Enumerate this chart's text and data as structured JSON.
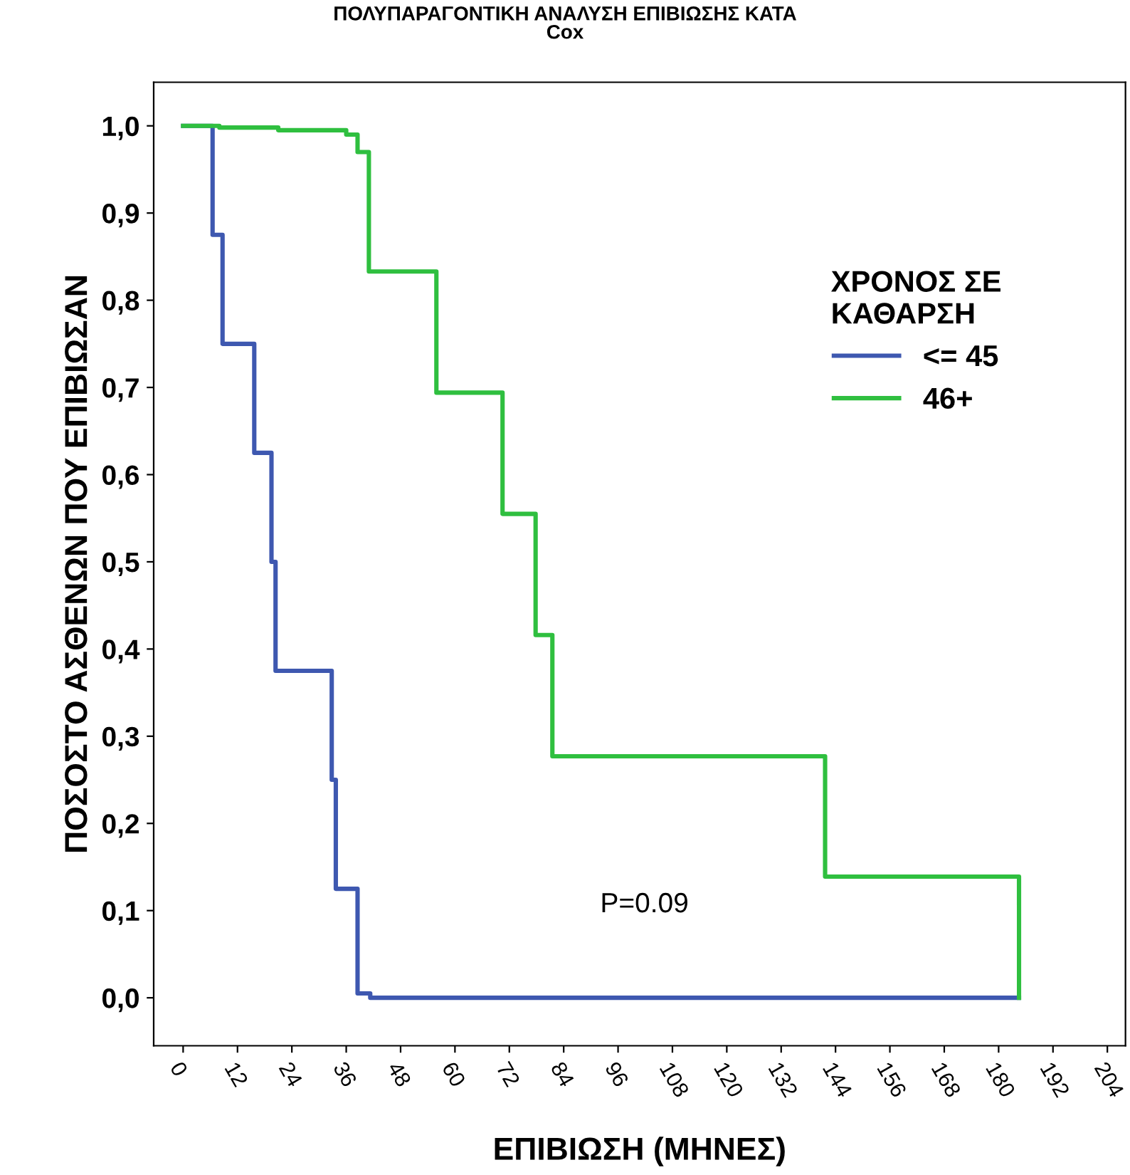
{
  "chart_data": {
    "type": "step",
    "title": "ΠΟΛΥΠΑΡΑΓΟΝΤΙΚΗ ΑΝΑΛΥΣΗ ΕΠΙΒΙΩΣΗΣ ΚΑΤΑ\nCox",
    "xlabel": "ΕΠΙΒΙΩΣΗ (ΜΗΝΕΣ)",
    "ylabel": "ΠΟΣΟΣΤΟ ΑΣΘΕΝΩΝ ΠΟΥ ΕΠΙΒΙΩΣΑΝ",
    "legend_title": "ΧΡΟΝΟΣ ΣΕ\nΚΑΘΑΡΣΗ",
    "legend": "right",
    "series": [
      {
        "name": "<= 45",
        "color": "#3e58b0",
        "x": [
          0,
          6.5,
          8.7,
          15.7,
          19.5,
          20.4,
          32.8,
          33.7,
          38.5,
          41.3,
          184.5
        ],
        "values": [
          1.0,
          0.875,
          0.75,
          0.625,
          0.5,
          0.375,
          0.25,
          0.125,
          0.005,
          0.0,
          0.0
        ]
      },
      {
        "name": "46+",
        "color": "#2fbf3f",
        "x": [
          0,
          8,
          21,
          36,
          38.5,
          41,
          55.9,
          70.5,
          77.8,
          81.5,
          141.7,
          184.5
        ],
        "values": [
          1.0,
          0.998,
          0.995,
          0.99,
          0.97,
          0.833,
          0.694,
          0.555,
          0.416,
          0.277,
          0.139,
          0.0
        ]
      }
    ],
    "xlim": [
      -6.5,
      208
    ],
    "xticks": [
      0,
      12,
      24,
      36,
      48,
      60,
      72,
      84,
      96,
      108,
      120,
      132,
      144,
      156,
      168,
      180,
      192,
      204
    ],
    "ylim": [
      -0.055,
      1.05
    ],
    "yticks": [
      {
        "value": 0.0,
        "label": "0,0"
      },
      {
        "value": 0.1,
        "label": "0,1"
      },
      {
        "value": 0.2,
        "label": "0,2"
      },
      {
        "value": 0.3,
        "label": "0,3"
      },
      {
        "value": 0.4,
        "label": "0,4"
      },
      {
        "value": 0.5,
        "label": "0,5"
      },
      {
        "value": 0.6,
        "label": "0,6"
      },
      {
        "value": 0.7,
        "label": "0,7"
      },
      {
        "value": 0.8,
        "label": "0,8"
      },
      {
        "value": 0.9,
        "label": "0,9"
      },
      {
        "value": 1.0,
        "label": "1,0"
      }
    ],
    "annotations": [
      "P=0.09"
    ],
    "grid": false
  }
}
